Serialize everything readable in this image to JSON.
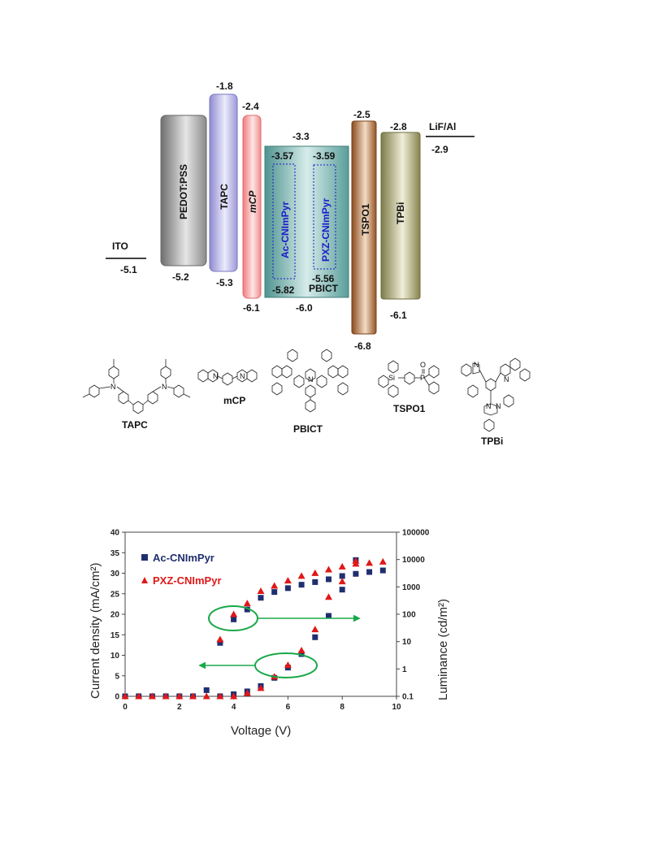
{
  "energy_diagram": {
    "layers": [
      {
        "name": "ITO",
        "lumo": "",
        "homo": "-5.1",
        "color": "#000000"
      },
      {
        "name": "PEDOT:PSS",
        "lumo": "",
        "homo": "-5.2",
        "color": "#8c8c8c"
      },
      {
        "name": "TAPC",
        "lumo": "-1.8",
        "homo": "-5.3",
        "color": "#9a96d6"
      },
      {
        "name": "mCP",
        "lumo": "-2.4",
        "homo": "-6.1",
        "color": "#f28a8a"
      },
      {
        "name": "PBICT",
        "lumo": "-3.3",
        "homo": "-6.0",
        "color": "#5a9e9a"
      },
      {
        "name": "TSPO1",
        "lumo": "-2.5",
        "homo": "-6.8",
        "color": "#9a5a2a"
      },
      {
        "name": "TPBi",
        "lumo": "-2.8",
        "homo": "-6.1",
        "color": "#8c8a55"
      },
      {
        "name": "LiF/Al",
        "lumo": "",
        "homo": "-2.9",
        "color": "#000000"
      }
    ],
    "dopants": [
      {
        "name": "Ac-CNImPyr",
        "lumo": "-3.57",
        "homo": "-5.82"
      },
      {
        "name": "PXZ-CNImPyr",
        "lumo": "-3.59",
        "homo": "-5.56"
      }
    ]
  },
  "molecules": [
    {
      "name": "TAPC"
    },
    {
      "name": "mCP"
    },
    {
      "name": "PBICT"
    },
    {
      "name": "TSPO1"
    },
    {
      "name": "TPBi"
    }
  ],
  "atom_labels": {
    "n": "N",
    "si": "Si",
    "p": "P",
    "o": "O"
  },
  "chart_data": {
    "type": "scatter",
    "xlabel": "Voltage (V)",
    "ylabel_left": "Current density (mA/cm²)",
    "ylabel_right": "Luminance (cd/m²)",
    "xlim": [
      0,
      10
    ],
    "ylim_left": [
      0,
      40
    ],
    "ylim_right": [
      0.1,
      100000
    ],
    "right_axis_scale": "log",
    "x_ticks": [
      "0",
      "2",
      "4",
      "6",
      "8",
      "10"
    ],
    "y_left_ticks": [
      "0",
      "5",
      "10",
      "15",
      "20",
      "25",
      "30",
      "35",
      "40"
    ],
    "y_right_ticks": [
      "0.1",
      "1",
      "10",
      "100",
      "1000",
      "10000",
      "100000"
    ],
    "legend_position": "top-left",
    "series": [
      {
        "name": "Ac-CNImPyr",
        "color": "#1f2f6e",
        "marker": "square",
        "current_density": [
          [
            0,
            0
          ],
          [
            0.5,
            0
          ],
          [
            1,
            0
          ],
          [
            1.5,
            0
          ],
          [
            2,
            0
          ],
          [
            2.5,
            0
          ],
          [
            3,
            1.5
          ],
          [
            3.5,
            0
          ],
          [
            4,
            0.5
          ],
          [
            4.5,
            1.2
          ],
          [
            5,
            2.5
          ],
          [
            5.5,
            4.5
          ],
          [
            6,
            7
          ],
          [
            6.5,
            10.3
          ],
          [
            7,
            14.4
          ],
          [
            7.5,
            19.6
          ],
          [
            8,
            26
          ],
          [
            8.5,
            33.2
          ]
        ],
        "luminance": [
          [
            3.5,
            9
          ],
          [
            4,
            65
          ],
          [
            4.5,
            150
          ],
          [
            5,
            400
          ],
          [
            5.5,
            650
          ],
          [
            6,
            900
          ],
          [
            6.5,
            1200
          ],
          [
            7,
            1500
          ],
          [
            7.5,
            1900
          ],
          [
            8,
            2500
          ],
          [
            8.5,
            3000
          ],
          [
            9,
            3500
          ],
          [
            9.5,
            4000
          ]
        ]
      },
      {
        "name": "PXZ-CNImPyr",
        "color": "#e01818",
        "marker": "triangle",
        "current_density": [
          [
            0,
            0
          ],
          [
            0.5,
            0
          ],
          [
            1,
            0
          ],
          [
            1.5,
            0
          ],
          [
            2,
            0
          ],
          [
            2.5,
            0
          ],
          [
            3,
            0
          ],
          [
            3.5,
            0
          ],
          [
            4,
            0
          ],
          [
            4.5,
            0.8
          ],
          [
            5,
            2.0
          ],
          [
            5.5,
            4.8
          ],
          [
            6,
            7.6
          ],
          [
            6.5,
            11.2
          ],
          [
            7,
            16.3
          ],
          [
            7.5,
            24.2
          ],
          [
            8,
            28
          ],
          [
            8.5,
            33
          ]
        ],
        "luminance": [
          [
            3.5,
            12
          ],
          [
            4,
            100
          ],
          [
            4.5,
            250
          ],
          [
            5,
            700
          ],
          [
            5.5,
            1100
          ],
          [
            6,
            1700
          ],
          [
            6.5,
            2500
          ],
          [
            7,
            3200
          ],
          [
            7.5,
            4300
          ],
          [
            8,
            5500
          ],
          [
            8.5,
            7000
          ],
          [
            9,
            7500
          ],
          [
            9.5,
            8300
          ]
        ]
      }
    ]
  }
}
